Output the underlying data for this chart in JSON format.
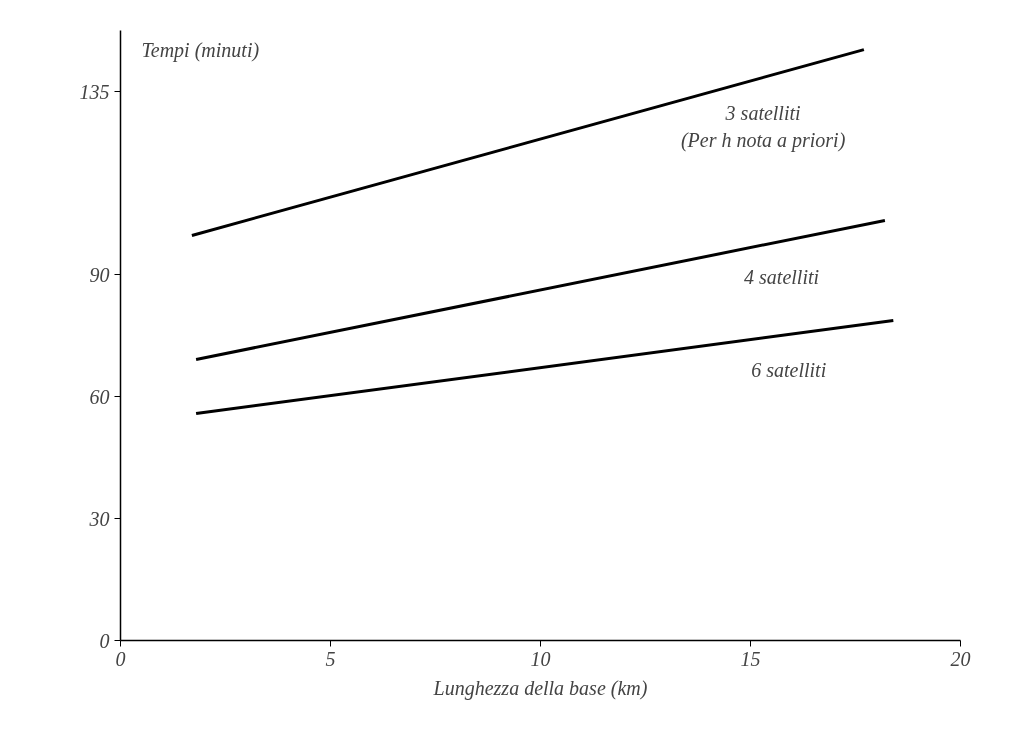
{
  "chart_data": {
    "type": "line",
    "ylabel": "Tempi (minuti)",
    "xlabel": "Lunghezza della base (km)",
    "xlim": [
      0,
      20
    ],
    "xticks": [
      0,
      5,
      10,
      15,
      20
    ],
    "ylim": [
      0,
      150
    ],
    "yticks": [
      0,
      30,
      60,
      90,
      135
    ],
    "grid": false,
    "marker": "none",
    "line_style": "solid",
    "series": [
      {
        "name": "3 satelliti",
        "color": "#000000",
        "x": [
          1.7,
          17.7
        ],
        "values": [
          99.6,
          145.3
        ]
      },
      {
        "name": "4 satelliti",
        "color": "#000000",
        "x": [
          1.8,
          18.2
        ],
        "values": [
          69.1,
          103.3
        ]
      },
      {
        "name": "6 satelliti",
        "color": "#000000",
        "x": [
          1.8,
          18.4
        ],
        "values": [
          55.8,
          78.7
        ]
      }
    ],
    "annotations": [
      "(Per h nota a priori)"
    ]
  }
}
